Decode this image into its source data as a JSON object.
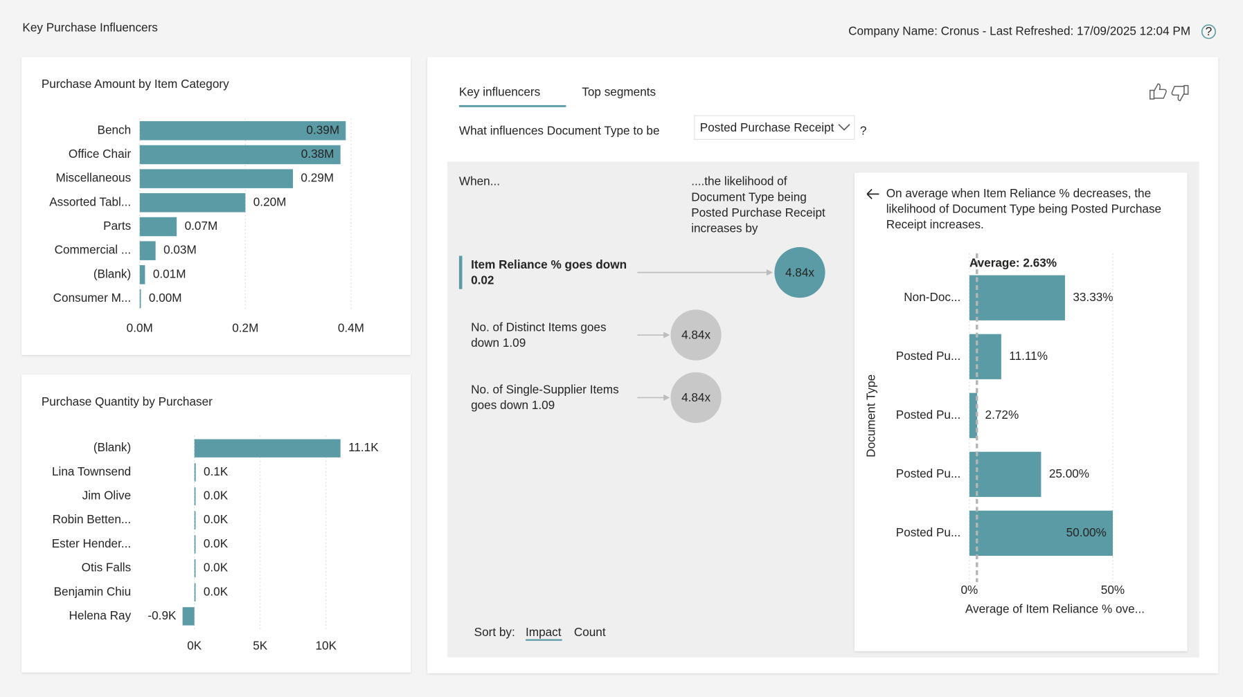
{
  "header": {
    "title": "Key Purchase Influencers",
    "info": "Company Name: Cronus - Last Refreshed: 17/09/2025 12:04 PM",
    "help": "?"
  },
  "chart_data": [
    {
      "type": "hbar",
      "title": "Purchase Amount by Item Category",
      "categories": [
        "Bench",
        "Office Chair",
        "Miscellaneous",
        "Assorted Tabl...",
        "Parts",
        "Commercial ...",
        "(Blank)",
        "Consumer M..."
      ],
      "values": [
        0.39,
        0.38,
        0.29,
        0.2,
        0.07,
        0.03,
        0.01,
        0.0
      ],
      "value_labels": [
        "0.39M",
        "0.38M",
        "0.29M",
        "0.20M",
        "0.07M",
        "0.03M",
        "0.01M",
        "0.00M"
      ],
      "color": "#5a9ba5",
      "xlim": [
        0,
        0.45
      ],
      "xticks": [
        {
          "value": 0,
          "label": "0.0M"
        },
        {
          "value": 0.2,
          "label": "0.2M"
        },
        {
          "value": 0.4,
          "label": "0.4M"
        }
      ],
      "grid": true
    },
    {
      "type": "hbar",
      "title": "Purchase Quantity by Purchaser",
      "categories": [
        "(Blank)",
        "Lina Townsend",
        "Jim Olive",
        "Robin Betten...",
        "Ester Hender...",
        "Otis Falls",
        "Benjamin Chiu",
        "Helena Ray"
      ],
      "values": [
        11.1,
        0.1,
        0.0,
        0.0,
        0.0,
        0.0,
        0.0,
        -0.9
      ],
      "value_labels": [
        "11.1K",
        "0.1K",
        "0.0K",
        "0.0K",
        "0.0K",
        "0.0K",
        "0.0K",
        "-0.9K"
      ],
      "color": "#5a9ba5",
      "xlim": [
        -1,
        11.5
      ],
      "xticks": [
        {
          "value": 0,
          "label": "0K"
        },
        {
          "value": 5,
          "label": "5K"
        },
        {
          "value": 10,
          "label": "10K"
        }
      ],
      "grid": true
    },
    {
      "type": "hbar",
      "xlabel": "Average of Item Reliance % ove...",
      "ylabel": "Document Type",
      "categories": [
        "Non-Doc...",
        "Posted Pu...",
        "Posted Pu...",
        "Posted Pu...",
        "Posted Pu..."
      ],
      "values": [
        33.33,
        11.11,
        2.72,
        25.0,
        50.0
      ],
      "value_labels": [
        "33.33%",
        "11.11%",
        "2.72%",
        "25.00%",
        "50.00%"
      ],
      "color": "#5a9ba5",
      "xlim": [
        0,
        50
      ],
      "xticks": [
        {
          "value": 0,
          "label": "0%"
        },
        {
          "value": 50,
          "label": "50%"
        }
      ],
      "average": {
        "value": 2.63,
        "label": "Average: 2.63%"
      },
      "grid": true
    }
  ],
  "key_influencers": {
    "tabs": [
      "Key influencers",
      "Top segments"
    ],
    "question": "What influences Document Type to be",
    "selected": "Posted Purchase Receipt",
    "question_end": "?",
    "when": "When...",
    "likelihood": [
      "....the likelihood of",
      "Document Type being",
      "Posted Purchase Receipt",
      "increases by"
    ],
    "influencers": [
      {
        "label": [
          "Item Reliance % goes down",
          "0.02"
        ],
        "impact": "4.84x"
      },
      {
        "label": [
          "No. of Distinct Items goes",
          "down 1.09"
        ],
        "impact": "4.84x"
      },
      {
        "label": [
          "No. of Single-Supplier Items",
          "goes down 1.09"
        ],
        "impact": "4.84x"
      }
    ],
    "detail": [
      "On average when Item Reliance % decreases, the",
      "likelihood of Document Type being Posted Purchase",
      "Receipt increases."
    ],
    "sort_label": "Sort by:",
    "sort_options": [
      "Impact",
      "Count"
    ]
  }
}
